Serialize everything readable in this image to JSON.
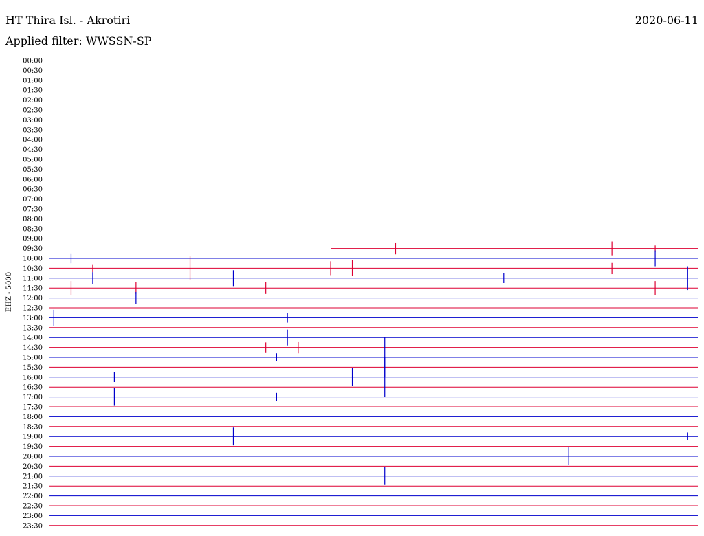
{
  "header": {
    "station": "HT Thira Isl. - Akrotiri",
    "date": "2020-06-11",
    "filter": "Applied filter: WWSSN-SP"
  },
  "colors": {
    "blue": "#0000cc",
    "red": "#dd0033"
  },
  "chart_data": {
    "type": "line",
    "title": "HT Thira Isl. - Akrotiri",
    "ylabel": "EHZ - 5000",
    "tick_labels": [
      "00:00",
      "00:30",
      "01:00",
      "01:30",
      "02:00",
      "02:30",
      "03:00",
      "03:30",
      "04:00",
      "04:30",
      "05:00",
      "05:30",
      "06:00",
      "06:30",
      "07:00",
      "07:30",
      "08:00",
      "08:30",
      "09:00",
      "09:30",
      "10:00",
      "10:30",
      "11:00",
      "11:30",
      "12:00",
      "12:30",
      "13:00",
      "13:30",
      "14:00",
      "14:30",
      "15:00",
      "15:30",
      "16:00",
      "16:30",
      "17:00",
      "17:30",
      "18:00",
      "18:30",
      "19:00",
      "19:30",
      "20:00",
      "20:30",
      "21:00",
      "21:30",
      "22:00",
      "22:30",
      "23:00",
      "23:30"
    ],
    "trace_start_minute": 13,
    "trace_start_row": "09:30",
    "row_minutes": 30,
    "events": [
      {
        "row": "09:30",
        "minute": 16,
        "amp": 0.6
      },
      {
        "row": "09:30",
        "minute": 28,
        "amp": 0.3
      },
      {
        "row": "09:30",
        "minute": 26,
        "amp": 0.7
      },
      {
        "row": "10:00",
        "minute": 1,
        "amp": 0.5
      },
      {
        "row": "10:00",
        "minute": 28,
        "amp": 0.8
      },
      {
        "row": "10:30",
        "minute": 2,
        "amp": 0.4
      },
      {
        "row": "10:30",
        "minute": 6.5,
        "amp": 1.2
      },
      {
        "row": "10:30",
        "minute": 13,
        "amp": 0.7
      },
      {
        "row": "10:30",
        "minute": 14,
        "amp": 0.8
      },
      {
        "row": "10:30",
        "minute": 26,
        "amp": 0.6
      },
      {
        "row": "11:00",
        "minute": 2,
        "amp": 0.6
      },
      {
        "row": "11:00",
        "minute": 8.5,
        "amp": 0.8
      },
      {
        "row": "11:00",
        "minute": 21,
        "amp": 0.5
      },
      {
        "row": "11:00",
        "minute": 29.5,
        "amp": 1.2
      },
      {
        "row": "11:30",
        "minute": 1,
        "amp": 0.7
      },
      {
        "row": "11:30",
        "minute": 4,
        "amp": 0.6
      },
      {
        "row": "11:30",
        "minute": 10,
        "amp": 0.6
      },
      {
        "row": "11:30",
        "minute": 28,
        "amp": 0.7
      },
      {
        "row": "12:00",
        "minute": 4,
        "amp": 0.6
      },
      {
        "row": "13:00",
        "minute": 0.2,
        "amp": 0.8
      },
      {
        "row": "13:00",
        "minute": 11,
        "amp": 0.5
      },
      {
        "row": "14:00",
        "minute": 11,
        "amp": 0.8
      },
      {
        "row": "14:30",
        "minute": 10,
        "amp": 0.5
      },
      {
        "row": "14:30",
        "minute": 11.5,
        "amp": 0.6
      },
      {
        "row": "15:00",
        "minute": 10.5,
        "amp": 0.4
      },
      {
        "row": "15:00",
        "minute": 15.5,
        "amp": 2.0
      },
      {
        "row": "16:00",
        "minute": 3,
        "amp": 0.5
      },
      {
        "row": "16:00",
        "minute": 15.5,
        "amp": 2.0
      },
      {
        "row": "16:00",
        "minute": 14,
        "amp": 0.9
      },
      {
        "row": "17:00",
        "minute": 3,
        "amp": 0.9
      },
      {
        "row": "17:00",
        "minute": 10.5,
        "amp": 0.4
      },
      {
        "row": "19:00",
        "minute": 8.5,
        "amp": 0.9
      },
      {
        "row": "19:00",
        "minute": 29.5,
        "amp": 0.4
      },
      {
        "row": "20:00",
        "minute": 24,
        "amp": 0.9
      },
      {
        "row": "21:00",
        "minute": 15.5,
        "amp": 0.9
      }
    ]
  }
}
